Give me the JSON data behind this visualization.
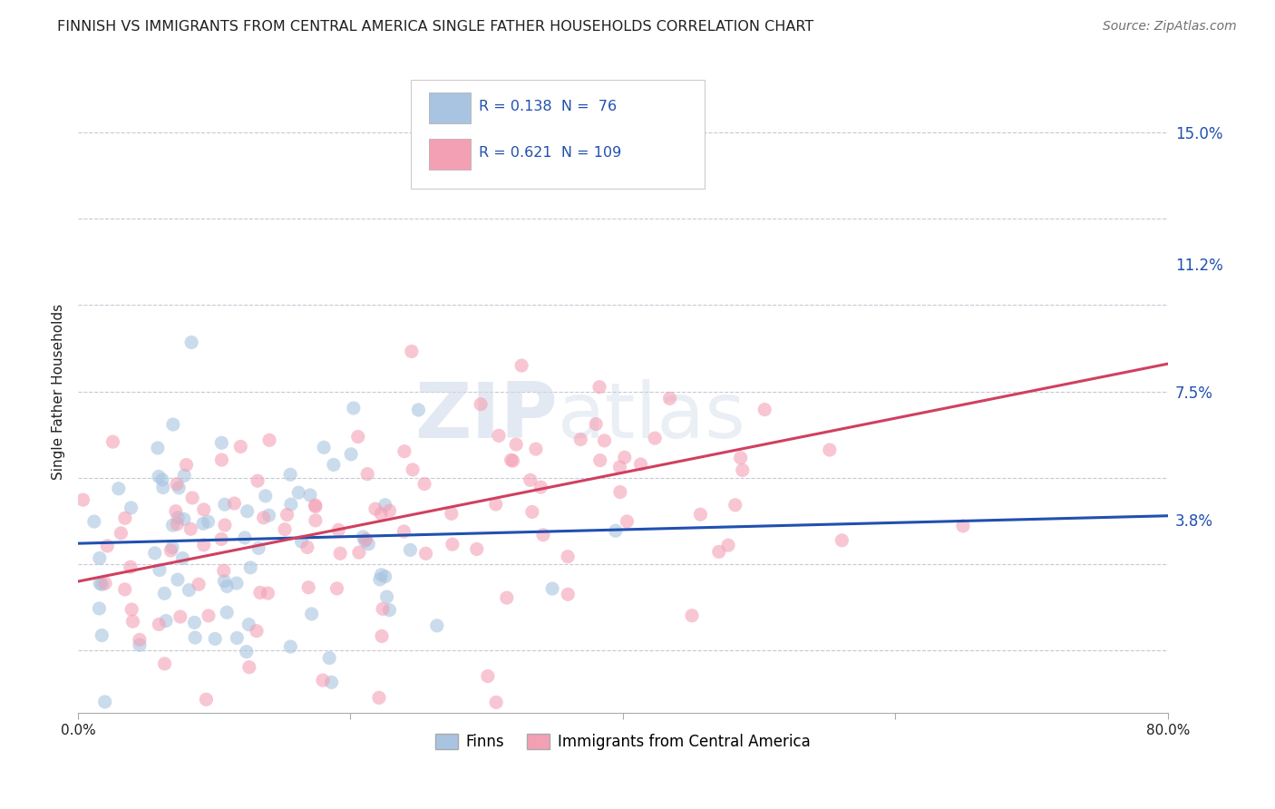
{
  "title": "FINNISH VS IMMIGRANTS FROM CENTRAL AMERICA SINGLE FATHER HOUSEHOLDS CORRELATION CHART",
  "source": "Source: ZipAtlas.com",
  "ylabel": "Single Father Households",
  "ytick_labels": [
    "3.8%",
    "7.5%",
    "11.2%",
    "15.0%"
  ],
  "ytick_values": [
    0.038,
    0.075,
    0.112,
    0.15
  ],
  "xlim": [
    0.0,
    0.8
  ],
  "ylim": [
    -0.018,
    0.168
  ],
  "finn_R": 0.138,
  "finn_N": 76,
  "imm_R": 0.621,
  "imm_N": 109,
  "finn_color": "#a8c4e0",
  "imm_color": "#f4a0b4",
  "finn_line_color": "#2050b0",
  "imm_line_color": "#d04060",
  "title_color": "#202020",
  "source_color": "#707070",
  "axis_color": "#aaaaaa",
  "grid_color": "#c8c8d8",
  "background": "#ffffff",
  "finn_line_start_y": 0.031,
  "finn_line_end_y": 0.039,
  "imm_line_start_y": 0.02,
  "imm_line_end_y": 0.083
}
